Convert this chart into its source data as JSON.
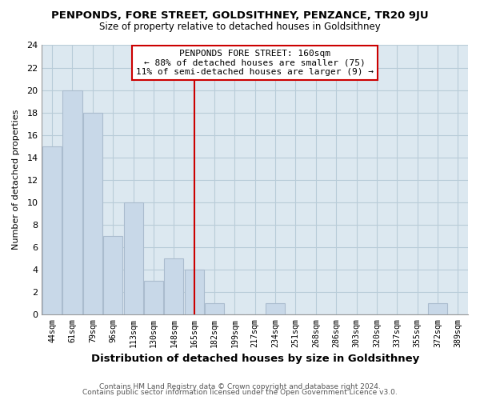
{
  "title": "PENPONDS, FORE STREET, GOLDSITHNEY, PENZANCE, TR20 9JU",
  "subtitle": "Size of property relative to detached houses in Goldsithney",
  "xlabel": "Distribution of detached houses by size in Goldsithney",
  "ylabel": "Number of detached properties",
  "bar_color": "#c8d8e8",
  "bar_edgecolor": "#aabcce",
  "plot_bg_color": "#dce8f0",
  "bins": [
    "44sqm",
    "61sqm",
    "79sqm",
    "96sqm",
    "113sqm",
    "130sqm",
    "148sqm",
    "165sqm",
    "182sqm",
    "199sqm",
    "217sqm",
    "234sqm",
    "251sqm",
    "268sqm",
    "286sqm",
    "303sqm",
    "320sqm",
    "337sqm",
    "355sqm",
    "372sqm",
    "389sqm"
  ],
  "values": [
    15,
    20,
    18,
    7,
    10,
    3,
    5,
    4,
    1,
    0,
    0,
    1,
    0,
    0,
    0,
    0,
    0,
    0,
    0,
    1,
    0
  ],
  "ylim": [
    0,
    24
  ],
  "yticks": [
    0,
    2,
    4,
    6,
    8,
    10,
    12,
    14,
    16,
    18,
    20,
    22,
    24
  ],
  "property_line_x": 7,
  "property_line_color": "#cc0000",
  "annotation_title": "PENPONDS FORE STREET: 160sqm",
  "annotation_line1": "← 88% of detached houses are smaller (75)",
  "annotation_line2": "11% of semi-detached houses are larger (9) →",
  "annotation_box_facecolor": "#ffffff",
  "annotation_box_edgecolor": "#cc0000",
  "footer1": "Contains HM Land Registry data © Crown copyright and database right 2024.",
  "footer2": "Contains public sector information licensed under the Open Government Licence v3.0.",
  "background_color": "#ffffff",
  "grid_color": "#b8ccd8"
}
